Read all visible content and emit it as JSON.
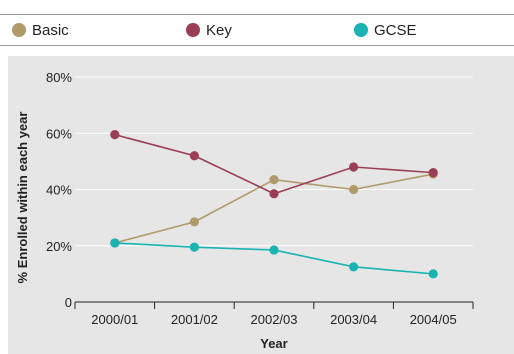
{
  "legend": {
    "items": [
      {
        "label": "Basic",
        "color": "#b09a6a"
      },
      {
        "label": "Key",
        "color": "#9b3d55"
      },
      {
        "label": "GCSE",
        "color": "#19b3b1"
      }
    ]
  },
  "chart_data": {
    "type": "line",
    "title": "",
    "xlabel": "Year",
    "ylabel": "% Enrolled within each year",
    "categories": [
      "2000/01",
      "2001/02",
      "2002/03",
      "2003/04",
      "2004/05"
    ],
    "ylim": [
      0,
      80
    ],
    "yticks": [
      0,
      20,
      40,
      60,
      80
    ],
    "ytick_labels": [
      "0",
      "20%",
      "40%",
      "60%",
      "80%"
    ],
    "grid": true,
    "legend_position": "top",
    "series": [
      {
        "name": "Basic",
        "color": "#b09a6a",
        "values": [
          21,
          28.5,
          43.5,
          40,
          45.5
        ]
      },
      {
        "name": "Key",
        "color": "#9b3d55",
        "values": [
          59.5,
          52,
          38.5,
          48,
          46
        ]
      },
      {
        "name": "GCSE",
        "color": "#19b3b1",
        "values": [
          21,
          19.5,
          18.5,
          12.5,
          10
        ]
      }
    ]
  }
}
